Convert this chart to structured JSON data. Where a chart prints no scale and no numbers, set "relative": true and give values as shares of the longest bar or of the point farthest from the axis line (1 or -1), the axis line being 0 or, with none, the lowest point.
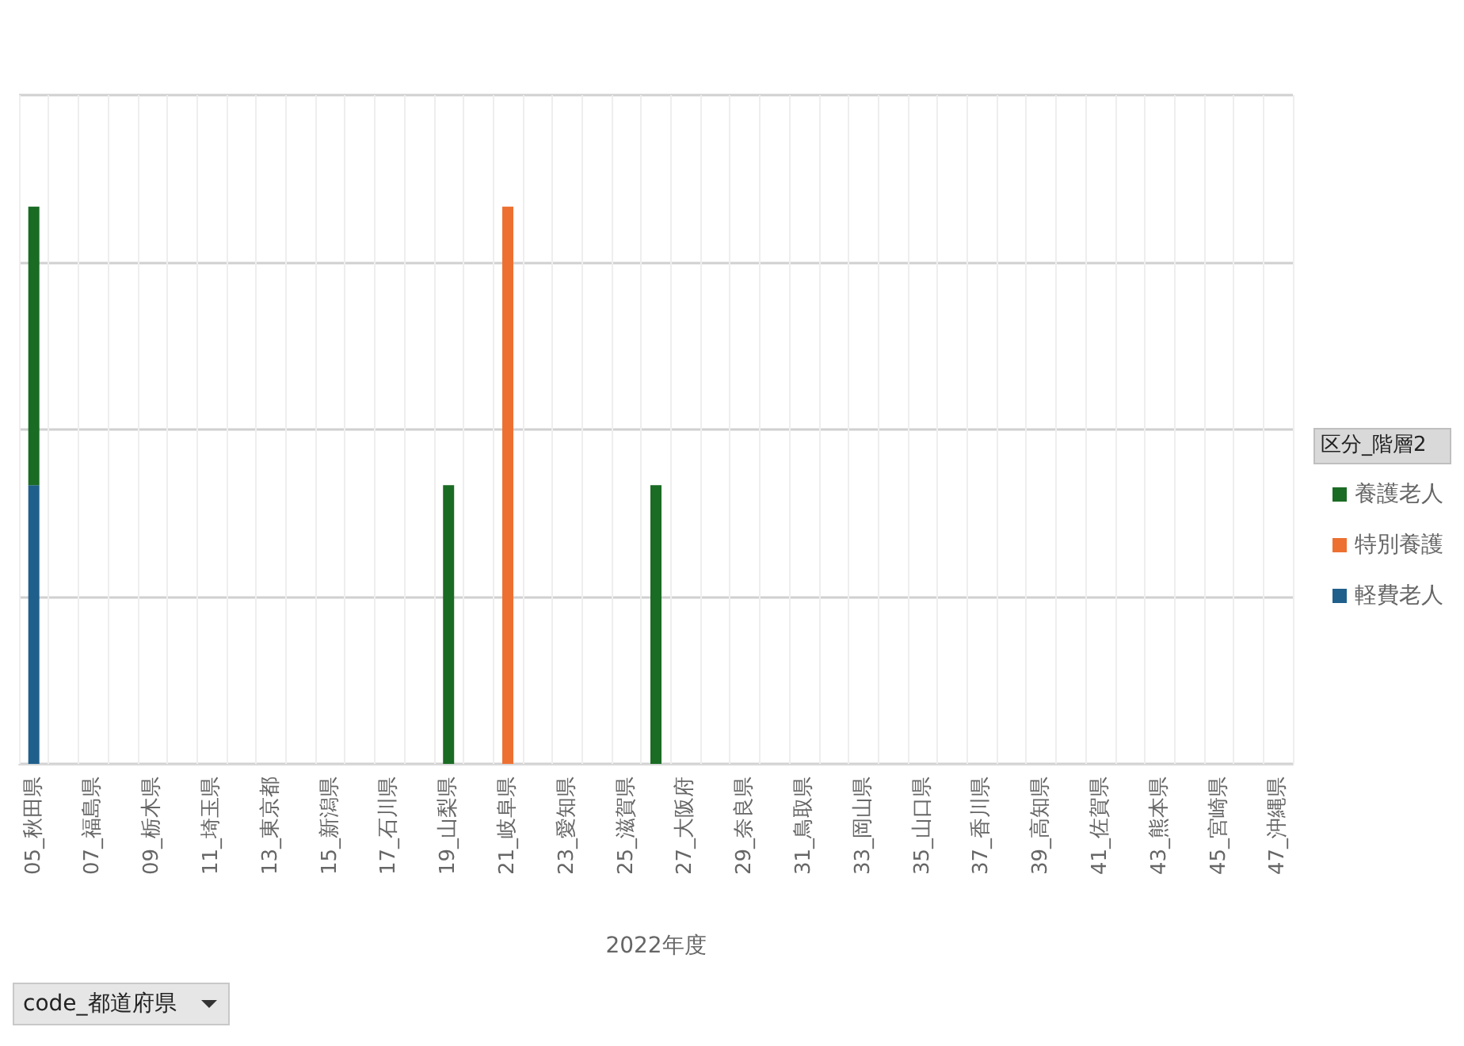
{
  "chart_data": {
    "type": "bar",
    "stacked": true,
    "relative": true,
    "xlabel": "2022年度",
    "legend_title": "区分_階層2",
    "legend": "right",
    "grid": "y",
    "categories": [
      "05_秋田県",
      null,
      "07_福島県",
      null,
      "09_栃木県",
      null,
      "11_埼玉県",
      null,
      "13_東京都",
      null,
      "15_新潟県",
      null,
      "17_石川県",
      null,
      "19_山梨県",
      null,
      "21_岐阜県",
      null,
      "23_愛知県",
      null,
      "25_滋賀県",
      null,
      "27_大阪府",
      null,
      "29_奈良県",
      null,
      "31_鳥取県",
      null,
      "33_岡山県",
      null,
      "35_山口県",
      null,
      "37_香川県",
      null,
      "39_高知県",
      null,
      "41_佐賀県",
      null,
      "43_熊本県",
      null,
      "45_宮崎県",
      null,
      "47_沖縄県"
    ],
    "series": [
      {
        "name": "軽費老人",
        "color": "#1f5f8b",
        "values": [
          0.5,
          null,
          null,
          null,
          null,
          null,
          null,
          null,
          null,
          null,
          null,
          null,
          null,
          null,
          null,
          null,
          null,
          null,
          null,
          null,
          null,
          null,
          null,
          null,
          null,
          null,
          null,
          null,
          null,
          null,
          null,
          null,
          null,
          null,
          null,
          null,
          null,
          null,
          null,
          null,
          null,
          null,
          null
        ]
      },
      {
        "name": "特別養護",
        "color": "#ed7031",
        "values": [
          null,
          null,
          null,
          null,
          null,
          null,
          null,
          null,
          null,
          null,
          null,
          null,
          null,
          null,
          null,
          null,
          1,
          null,
          null,
          null,
          null,
          null,
          null,
          null,
          null,
          null,
          null,
          null,
          null,
          null,
          null,
          null,
          null,
          null,
          null,
          null,
          null,
          null,
          null,
          null,
          null,
          null,
          null
        ]
      },
      {
        "name": "養護老人",
        "color": "#1a6b24",
        "values": [
          0.5,
          null,
          null,
          null,
          null,
          null,
          null,
          null,
          null,
          null,
          null,
          null,
          null,
          null,
          0.5,
          null,
          null,
          null,
          null,
          null,
          null,
          0.5,
          null,
          null,
          null,
          null,
          null,
          null,
          null,
          null,
          null,
          null,
          null,
          null,
          null,
          null,
          null,
          null,
          null,
          null,
          null,
          null,
          null
        ]
      }
    ],
    "annotations": [
      "code_都道府県"
    ]
  }
}
